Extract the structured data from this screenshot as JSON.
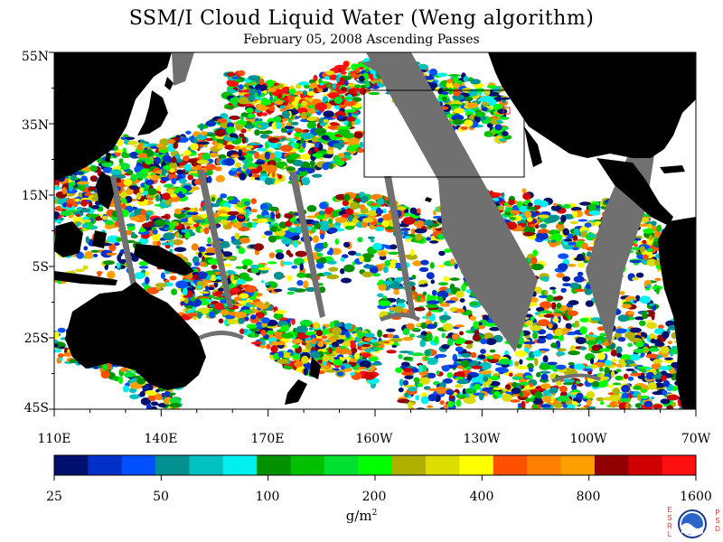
{
  "title": "SSM/I Cloud Liquid Water (Weng algorithm)",
  "subtitle": "February 05, 2008  Ascending Passes",
  "lat_labels": [
    "55N",
    "35N",
    "15N",
    "5S",
    "25S",
    "45S"
  ],
  "lon_labels": [
    "110E",
    "140E",
    "170E",
    "160W",
    "130W",
    "100W",
    "70W"
  ],
  "colorbar": {
    "colors": [
      "#00106e",
      "#0030c8",
      "#0050ff",
      "#009090",
      "#00c0c0",
      "#00f0f0",
      "#009000",
      "#00c000",
      "#00e030",
      "#00ff00",
      "#b0b000",
      "#dcdc00",
      "#ffff00",
      "#ff5000",
      "#ff8000",
      "#ffa000",
      "#900000",
      "#d00000",
      "#ff1010"
    ],
    "labels": [
      "25",
      "50",
      "100",
      "200",
      "400",
      "800",
      "1600"
    ],
    "unit_base": "g/m",
    "unit_exp": "2"
  },
  "colors": {
    "land": "#000000",
    "no_data": "#707070",
    "background": "#ffffff"
  },
  "logo": {
    "text": "NOAA",
    "left_letters": "ESRL",
    "right_letters": "PSD"
  }
}
